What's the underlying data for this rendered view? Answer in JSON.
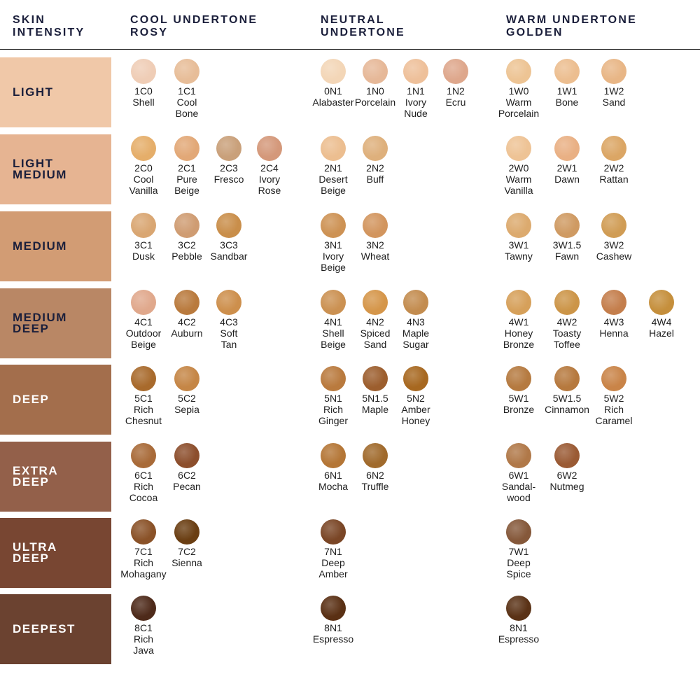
{
  "headers": {
    "intensity": [
      "SKIN",
      "INTENSITY"
    ],
    "cool": [
      "COOL UNDERTONE",
      "ROSY"
    ],
    "neutral": [
      "NEUTRAL",
      "UNDERTONE"
    ],
    "warm": [
      "WARM UNDERTONE",
      "GOLDEN"
    ]
  },
  "rows": [
    {
      "label": [
        "LIGHT"
      ],
      "band": "#f0c8a8",
      "text": "#1b1f3b",
      "cool": [
        {
          "code": "1C0",
          "name": "Shell",
          "color": "#efcdb6"
        },
        {
          "code": "1C1",
          "name": "Cool\nBone",
          "color": "#e7bd98"
        }
      ],
      "neutral": [
        {
          "code": "0N1",
          "name": "Alabaster",
          "color": "#f3d6b7"
        },
        {
          "code": "1N0",
          "name": "Porcelain",
          "color": "#e6b898"
        },
        {
          "code": "1N1",
          "name": "Ivory\nNude",
          "color": "#eec09a"
        },
        {
          "code": "1N2",
          "name": "Ecru",
          "color": "#dea78c"
        }
      ],
      "warm": [
        {
          "code": "1W0",
          "name": "Warm\nPorcelain",
          "color": "#edc494"
        },
        {
          "code": "1W1",
          "name": "Bone",
          "color": "#ecbe90"
        },
        {
          "code": "1W2",
          "name": "Sand",
          "color": "#e8b686"
        }
      ]
    },
    {
      "label": [
        "LIGHT",
        "MEDIUM"
      ],
      "band": "#e6b492",
      "text": "#1b1f3b",
      "cool": [
        {
          "code": "2C0",
          "name": "Cool\nVanilla",
          "color": "#e5ae6a"
        },
        {
          "code": "2C1",
          "name": "Pure\nBeige",
          "color": "#e2a877"
        },
        {
          "code": "2C3",
          "name": "Fresco",
          "color": "#c9a07a"
        },
        {
          "code": "2C4",
          "name": "Ivory\nRose",
          "color": "#d4987a"
        }
      ],
      "neutral": [
        {
          "code": "2N1",
          "name": "Desert\nBeige",
          "color": "#ecbe90"
        },
        {
          "code": "2N2",
          "name": "Buff",
          "color": "#deb07c"
        }
      ],
      "warm": [
        {
          "code": "2W0",
          "name": "Warm\nVanilla",
          "color": "#eec395"
        },
        {
          "code": "2W1",
          "name": "Dawn",
          "color": "#e9b084"
        },
        {
          "code": "2W2",
          "name": "Rattan",
          "color": "#dba665"
        }
      ]
    },
    {
      "label": [
        "MEDIUM"
      ],
      "band": "#d29c74",
      "text": "#1b1f3b",
      "cool": [
        {
          "code": "3C1",
          "name": "Dusk",
          "color": "#d9a672"
        },
        {
          "code": "3C2",
          "name": "Pebble",
          "color": "#cf9c72"
        },
        {
          "code": "3C3",
          "name": "Sandbar",
          "color": "#c98e4a"
        }
      ],
      "neutral": [
        {
          "code": "3N1",
          "name": "Ivory\nBeige",
          "color": "#cd9254"
        },
        {
          "code": "3N2",
          "name": "Wheat",
          "color": "#d2955e"
        }
      ],
      "warm": [
        {
          "code": "3W1",
          "name": "Tawny",
          "color": "#dcaa6e"
        },
        {
          "code": "3W1.5",
          "name": "Fawn",
          "color": "#cf9a62"
        },
        {
          "code": "3W2",
          "name": "Cashew",
          "color": "#d09c54"
        }
      ]
    },
    {
      "label": [
        "MEDIUM",
        "DEEP"
      ],
      "band": "#b98765",
      "text": "#1b1f3b",
      "cool": [
        {
          "code": "4C1",
          "name": "Outdoor\nBeige",
          "color": "#e0a88c"
        },
        {
          "code": "4C2",
          "name": "Auburn",
          "color": "#b97a3d"
        },
        {
          "code": "4C3",
          "name": "Soft\nTan",
          "color": "#cd8f4c"
        }
      ],
      "neutral": [
        {
          "code": "4N1",
          "name": "Shell\nBeige",
          "color": "#cb9152"
        },
        {
          "code": "4N2",
          "name": "Spiced\nSand",
          "color": "#d5964a"
        },
        {
          "code": "4N3",
          "name": "Maple\nSugar",
          "color": "#c38c4f"
        }
      ],
      "warm": [
        {
          "code": "4W1",
          "name": "Honey\nBronze",
          "color": "#d6a05a"
        },
        {
          "code": "4W2",
          "name": "Toasty\nToffee",
          "color": "#cc9548"
        },
        {
          "code": "4W3",
          "name": "Henna",
          "color": "#c47e4c"
        },
        {
          "code": "4W4",
          "name": "Hazel",
          "color": "#c58f3c"
        }
      ]
    },
    {
      "label": [
        "DEEP"
      ],
      "band": "#a36e4c",
      "text": "#ffffff",
      "cool": [
        {
          "code": "5C1",
          "name": "Rich\nChesnut",
          "color": "#a86a2c"
        },
        {
          "code": "5C2",
          "name": "Sepia",
          "color": "#c58646"
        }
      ],
      "neutral": [
        {
          "code": "5N1",
          "name": "Rich\nGinger",
          "color": "#b97a3e"
        },
        {
          "code": "5N1.5",
          "name": "Maple",
          "color": "#9c5e2e"
        },
        {
          "code": "5N2",
          "name": "Amber\nHoney",
          "color": "#a76820"
        }
      ],
      "warm": [
        {
          "code": "5W1",
          "name": "Bronze",
          "color": "#b57a40"
        },
        {
          "code": "5W1.5",
          "name": "Cinnamon",
          "color": "#b6793e"
        },
        {
          "code": "5W2",
          "name": "Rich\nCaramel",
          "color": "#c98448"
        }
      ]
    },
    {
      "label": [
        "EXTRA",
        "DEEP"
      ],
      "band": "#93604a",
      "text": "#ffffff",
      "cool": [
        {
          "code": "6C1",
          "name": "Rich\nCocoa",
          "color": "#a86a38"
        },
        {
          "code": "6C2",
          "name": "Pecan",
          "color": "#8c4e2c"
        }
      ],
      "neutral": [
        {
          "code": "6N1",
          "name": "Mocha",
          "color": "#b47636"
        },
        {
          "code": "6N2",
          "name": "Truffle",
          "color": "#a06a2c"
        }
      ],
      "warm": [
        {
          "code": "6W1",
          "name": "Sandal-\nwood",
          "color": "#b07848"
        },
        {
          "code": "6W2",
          "name": "Nutmeg",
          "color": "#9a5a34"
        }
      ]
    },
    {
      "label": [
        "ULTRA",
        "DEEP"
      ],
      "band": "#784632",
      "text": "#ffffff",
      "cool": [
        {
          "code": "7C1",
          "name": "Rich\nMohagany",
          "color": "#8a5228"
        },
        {
          "code": "7C2",
          "name": "Sienna",
          "color": "#6a3e12"
        }
      ],
      "neutral": [
        {
          "code": "7N1",
          "name": "Deep\nAmber",
          "color": "#7a4626"
        }
      ],
      "warm": [
        {
          "code": "7W1",
          "name": "Deep\nSpice",
          "color": "#85583a"
        }
      ]
    },
    {
      "label": [
        "DEEPEST"
      ],
      "band": "#6b4230",
      "text": "#ffffff",
      "cool": [
        {
          "code": "8C1",
          "name": "Rich\nJava",
          "color": "#4e2a1a"
        }
      ],
      "neutral": [
        {
          "code": "8N1",
          "name": "Espresso",
          "color": "#5a3014"
        }
      ],
      "warm": [
        {
          "code": "8N1",
          "name": "Espresso",
          "color": "#5a3216"
        }
      ]
    }
  ]
}
